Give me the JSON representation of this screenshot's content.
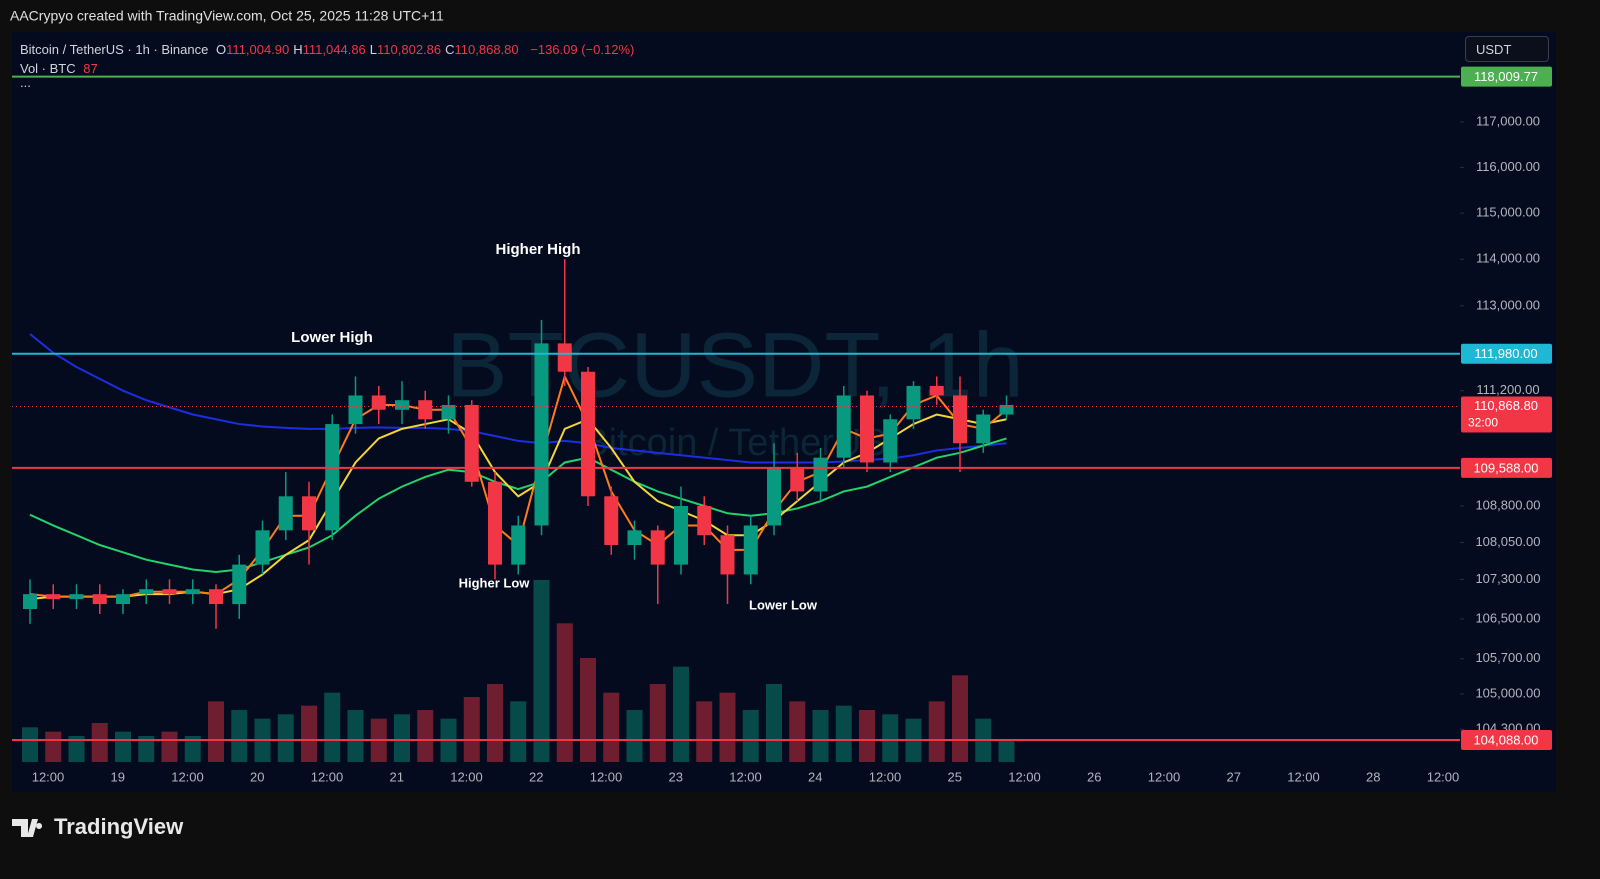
{
  "header": {
    "title": "AACrypyo created with TradingView.com, Oct 25, 2025 11:28 UTC+11"
  },
  "legend": {
    "symbol": "Bitcoin / TetherUS · 1h · Binance",
    "ohlc": [
      {
        "key": "O",
        "text": "111,004.90"
      },
      {
        "key": "H",
        "text": "111,044.86"
      },
      {
        "key": "L",
        "text": "110,802.86"
      },
      {
        "key": "C",
        "text": "110,868.80"
      }
    ],
    "change": "−136.09 (−0.12%)",
    "volume_label": "Vol · BTC",
    "volume_value": "87",
    "more": "..."
  },
  "currency_button": "USDT",
  "footer": {
    "logo": "TradingView"
  },
  "chart_data": {
    "type": "candlestick",
    "watermark": {
      "symbol": "BTCUSDT, 1h",
      "name": "Bitcoin / TetherUS"
    },
    "log_scale": true,
    "grid": false,
    "up_color": "#089981",
    "down_color": "#f23645",
    "ylim": [
      103655,
      119010
    ],
    "yticks": [
      {
        "value": 117000,
        "label": "117,000.00"
      },
      {
        "value": 116000,
        "label": "116,000.00"
      },
      {
        "value": 115000,
        "label": "115,000.00"
      },
      {
        "value": 114000,
        "label": "114,000.00"
      },
      {
        "value": 113000,
        "label": "113,000.00"
      },
      {
        "value": 111200,
        "label": "111,200.00"
      },
      {
        "value": 108800,
        "label": "108,800.00"
      },
      {
        "value": 108050,
        "label": "108,050.00"
      },
      {
        "value": 107300,
        "label": "107,300.00"
      },
      {
        "value": 106500,
        "label": "106,500.00"
      },
      {
        "value": 105700,
        "label": "105,700.00"
      },
      {
        "value": 105000,
        "label": "105,000.00"
      },
      {
        "value": 104300,
        "label": "104,300.00"
      }
    ],
    "xticks": [
      "12:00",
      "19",
      "12:00",
      "20",
      "12:00",
      "21",
      "12:00",
      "22",
      "12:00",
      "23",
      "12:00",
      "24",
      "12:00",
      "25",
      "12:00",
      "26",
      "12:00",
      "27",
      "12:00",
      "28",
      "12:00"
    ],
    "open": [
      106700,
      107000,
      106900,
      107000,
      106800,
      107000,
      107100,
      107000,
      107100,
      106800,
      107600,
      108300,
      109000,
      108300,
      110500,
      111100,
      110800,
      111000,
      110600,
      110900,
      109300,
      107600,
      108400,
      112200,
      111600,
      109000,
      108000,
      108300,
      107600,
      108800,
      108200,
      107400,
      108400,
      109600,
      109100,
      109800,
      111100,
      109700,
      110600,
      111300,
      111100,
      110100,
      110700
    ],
    "high": [
      107300,
      107200,
      107200,
      107200,
      107100,
      107300,
      107300,
      107300,
      107200,
      107800,
      108500,
      109500,
      109300,
      110700,
      111500,
      111300,
      111400,
      111200,
      111100,
      111000,
      109500,
      108600,
      112700,
      114000,
      111700,
      109200,
      108500,
      108400,
      109200,
      109000,
      108400,
      108600,
      110100,
      109900,
      110000,
      111300,
      111200,
      110700,
      111400,
      111500,
      111500,
      110800,
      111100
    ],
    "low": [
      106400,
      106700,
      106700,
      106600,
      106600,
      106800,
      106800,
      106800,
      106300,
      106500,
      107400,
      108100,
      107600,
      108100,
      110300,
      110500,
      110500,
      110400,
      110300,
      109200,
      107300,
      107400,
      108200,
      111300,
      108800,
      107800,
      107700,
      106800,
      107400,
      108000,
      106800,
      107200,
      108200,
      108900,
      108900,
      109600,
      109500,
      109500,
      110400,
      110900,
      109500,
      109900,
      110600
    ],
    "close": [
      107000,
      106900,
      107000,
      106800,
      107000,
      107100,
      107000,
      107100,
      106800,
      107600,
      108300,
      109000,
      108300,
      110500,
      111100,
      110800,
      111000,
      110600,
      110900,
      109300,
      107600,
      108400,
      112200,
      111600,
      109000,
      108000,
      108300,
      107600,
      108800,
      108200,
      107400,
      108400,
      109600,
      109100,
      109800,
      111100,
      109700,
      110600,
      111300,
      111100,
      110100,
      110700,
      110900
    ],
    "volume": {
      "ylim": [
        0,
        3000
      ],
      "values": [
        400,
        350,
        300,
        450,
        350,
        300,
        350,
        300,
        700,
        600,
        500,
        550,
        650,
        800,
        600,
        500,
        550,
        600,
        500,
        750,
        900,
        700,
        2100,
        1600,
        1200,
        800,
        600,
        900,
        1100,
        700,
        800,
        600,
        900,
        700,
        600,
        650,
        600,
        550,
        500,
        700,
        1000,
        500,
        250
      ]
    },
    "series": [
      {
        "color": "#1a2fe0",
        "values": [
          112400,
          112000,
          111700,
          111450,
          111200,
          111000,
          110850,
          110700,
          110600,
          110500,
          110450,
          110420,
          110400,
          110400,
          110420,
          110430,
          110420,
          110420,
          110400,
          110350,
          110250,
          110150,
          110100,
          110150,
          110100,
          110000,
          109950,
          109900,
          109850,
          109800,
          109750,
          109700,
          109700,
          109700,
          109700,
          109720,
          109750,
          109780,
          109850,
          109950,
          110000,
          110050,
          110100
        ]
      },
      {
        "color": "#22d36b",
        "values": [
          108620,
          108400,
          108200,
          108000,
          107850,
          107700,
          107600,
          107500,
          107450,
          107500,
          107650,
          107800,
          107950,
          108200,
          108600,
          108950,
          109200,
          109400,
          109550,
          109500,
          109300,
          109150,
          109300,
          109700,
          109800,
          109550,
          109300,
          109100,
          108950,
          108800,
          108650,
          108600,
          108650,
          108750,
          108900,
          109100,
          109200,
          109400,
          109600,
          109800,
          109900,
          110050,
          110200
        ]
      },
      {
        "color": "#f5d536",
        "values": [
          106900,
          106950,
          106950,
          106950,
          106950,
          107000,
          107000,
          107050,
          107000,
          107100,
          107400,
          107800,
          108100,
          108900,
          109700,
          110200,
          110400,
          110500,
          110600,
          110300,
          109500,
          109000,
          109300,
          110400,
          110600,
          110000,
          109300,
          108900,
          108700,
          108500,
          108200,
          108200,
          108500,
          108900,
          109300,
          109700,
          109900,
          110200,
          110500,
          110700,
          110600,
          110500,
          110600
        ]
      },
      {
        "color": "#ff7a1a",
        "values": [
          107000,
          106950,
          106950,
          106950,
          106950,
          107050,
          107050,
          107050,
          107000,
          107300,
          107900,
          108600,
          108600,
          109600,
          110600,
          110900,
          110900,
          110800,
          110800,
          110000,
          108400,
          108000,
          109800,
          111500,
          110500,
          109100,
          108300,
          108000,
          108400,
          108400,
          107900,
          107900,
          108700,
          109300,
          109500,
          110400,
          110200,
          110300,
          110900,
          111100,
          110500,
          110400,
          110800
        ]
      }
    ],
    "levels": [
      {
        "value": 118009.77,
        "label": "118,009.77",
        "color": "#4caf50"
      },
      {
        "value": 111980,
        "label": "111,980.00",
        "color": "#1fb8d4"
      },
      {
        "value": 109588,
        "label": "109,588.00",
        "color": "#f23645"
      },
      {
        "value": 104088,
        "label": "104,088.00",
        "color": "#f23645"
      }
    ],
    "last_price": {
      "value": 110868.8,
      "label": "110,868.80",
      "countdown": "32:00",
      "color": "#f23645"
    },
    "annotations": [
      "Higher High",
      "Lower High",
      "Higher Low",
      "Lower Low"
    ]
  }
}
